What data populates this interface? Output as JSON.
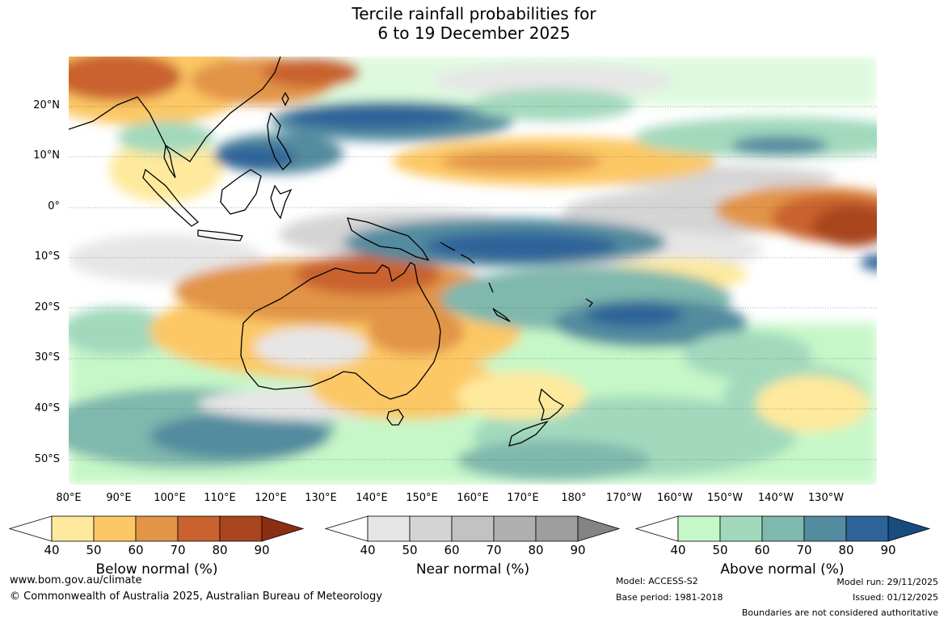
{
  "title": {
    "line1": "Tercile rainfall probabilities for",
    "line2": "6 to 19 December 2025"
  },
  "axes": {
    "lat_labels": [
      "20°N",
      "10°N",
      "0°",
      "10°S",
      "20°S",
      "30°S",
      "40°S",
      "50°S"
    ],
    "lat_values": [
      20,
      10,
      0,
      -10,
      -20,
      -30,
      -40,
      -50
    ],
    "lat_range": [
      -55,
      30
    ],
    "lon_labels": [
      "80°E",
      "90°E",
      "100°E",
      "110°E",
      "120°E",
      "130°E",
      "140°E",
      "150°E",
      "160°E",
      "170°E",
      "180°",
      "170°W",
      "160°W",
      "150°W",
      "140°W",
      "130°W"
    ],
    "lon_values": [
      80,
      90,
      100,
      110,
      120,
      130,
      140,
      150,
      160,
      170,
      180,
      190,
      200,
      210,
      220,
      230
    ],
    "lon_range": [
      80,
      240
    ]
  },
  "legend": {
    "below": {
      "label": "Below normal (%)",
      "ticks": [
        "40",
        "50",
        "60",
        "70",
        "80",
        "90"
      ],
      "colors": [
        "#fee99c",
        "#fcc865",
        "#e29447",
        "#c9622e",
        "#a8451f",
        "#8a2f12"
      ]
    },
    "near": {
      "label": "Near normal (%)",
      "ticks": [
        "40",
        "50",
        "60",
        "70",
        "80",
        "90"
      ],
      "colors": [
        "#e6e6e6",
        "#d4d4d4",
        "#c2c2c2",
        "#b0b0b0",
        "#9e9e9e",
        "#848484"
      ]
    },
    "above": {
      "label": "Above normal (%)",
      "ticks": [
        "40",
        "50",
        "60",
        "70",
        "80",
        "90"
      ],
      "colors": [
        "#c6f7c8",
        "#a2d9bd",
        "#7fb8ad",
        "#538b9f",
        "#2d6399",
        "#174c7e"
      ]
    }
  },
  "footer": {
    "website": "www.bom.gov.au/climate",
    "copyright": "© Commonwealth of Australia 2025, Australian Bureau of Meteorology",
    "model": "Model: ACCESS-S2",
    "base_period": "Base period: 1981-2018",
    "model_run": "Model run: 29/11/2025",
    "issued": "Issued: 01/12/2025",
    "disclaimer": "Boundaries are not considered authoritative"
  }
}
